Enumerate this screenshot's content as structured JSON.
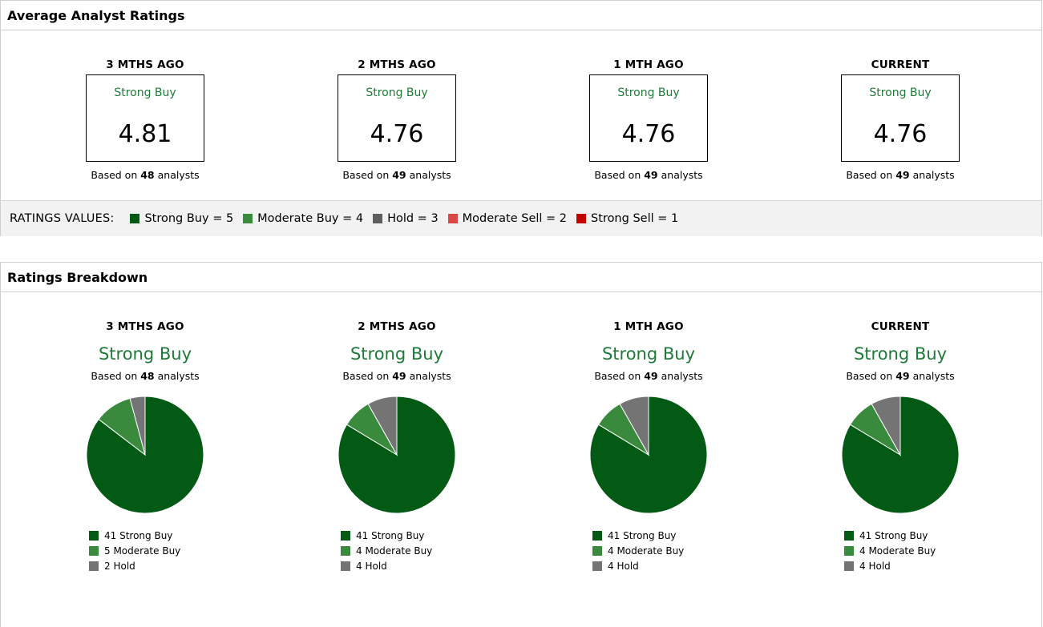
{
  "colors": {
    "strong_buy": "#035a14",
    "moderate_buy": "#3a8a3d",
    "hold": "#747474",
    "moderate_sell": "#d94747",
    "strong_sell": "#c20000",
    "rating_text": "#1e7a38"
  },
  "average": {
    "title": "Average Analyst Ratings",
    "periods": [
      {
        "period": "3 MTHS AGO",
        "rating": "Strong Buy",
        "value": "4.81",
        "based_prefix": "Based on",
        "count": "48",
        "based_suffix": "analysts"
      },
      {
        "period": "2 MTHS AGO",
        "rating": "Strong Buy",
        "value": "4.76",
        "based_prefix": "Based on",
        "count": "49",
        "based_suffix": "analysts"
      },
      {
        "period": "1 MTH AGO",
        "rating": "Strong Buy",
        "value": "4.76",
        "based_prefix": "Based on",
        "count": "49",
        "based_suffix": "analysts"
      },
      {
        "period": "CURRENT",
        "rating": "Strong Buy",
        "value": "4.76",
        "based_prefix": "Based on",
        "count": "49",
        "based_suffix": "analysts"
      }
    ],
    "values_legend": {
      "title": "RATINGS VALUES:",
      "items": [
        {
          "label": "Strong Buy = 5",
          "color": "#035a14"
        },
        {
          "label": "Moderate Buy = 4",
          "color": "#3a8a3d"
        },
        {
          "label": "Hold = 3",
          "color": "#5e5e5e"
        },
        {
          "label": "Moderate Sell = 2",
          "color": "#d94747"
        },
        {
          "label": "Strong Sell = 1",
          "color": "#c20000"
        }
      ]
    }
  },
  "breakdown": {
    "title": "Ratings Breakdown",
    "periods": [
      {
        "period": "3 MTHS AGO",
        "rating": "Strong Buy",
        "based_prefix": "Based on",
        "count": "48",
        "based_suffix": "analysts",
        "legend": [
          "41 Strong Buy",
          "5 Moderate Buy",
          "2 Hold"
        ]
      },
      {
        "period": "2 MTHS AGO",
        "rating": "Strong Buy",
        "based_prefix": "Based on",
        "count": "49",
        "based_suffix": "analysts",
        "legend": [
          "41 Strong Buy",
          "4 Moderate Buy",
          "4 Hold"
        ]
      },
      {
        "period": "1 MTH AGO",
        "rating": "Strong Buy",
        "based_prefix": "Based on",
        "count": "49",
        "based_suffix": "analysts",
        "legend": [
          "41 Strong Buy",
          "4 Moderate Buy",
          "4 Hold"
        ]
      },
      {
        "period": "CURRENT",
        "rating": "Strong Buy",
        "based_prefix": "Based on",
        "count": "49",
        "based_suffix": "analysts",
        "legend": [
          "41 Strong Buy",
          "4 Moderate Buy",
          "4 Hold"
        ]
      }
    ]
  },
  "chart_data": [
    {
      "type": "pie",
      "period": "3 MTHS AGO",
      "categories": [
        "Strong Buy",
        "Moderate Buy",
        "Hold"
      ],
      "values": [
        41,
        5,
        2
      ]
    },
    {
      "type": "pie",
      "period": "2 MTHS AGO",
      "categories": [
        "Strong Buy",
        "Moderate Buy",
        "Hold"
      ],
      "values": [
        41,
        4,
        4
      ]
    },
    {
      "type": "pie",
      "period": "1 MTH AGO",
      "categories": [
        "Strong Buy",
        "Moderate Buy",
        "Hold"
      ],
      "values": [
        41,
        4,
        4
      ]
    },
    {
      "type": "pie",
      "period": "CURRENT",
      "categories": [
        "Strong Buy",
        "Moderate Buy",
        "Hold"
      ],
      "values": [
        41,
        4,
        4
      ]
    }
  ]
}
